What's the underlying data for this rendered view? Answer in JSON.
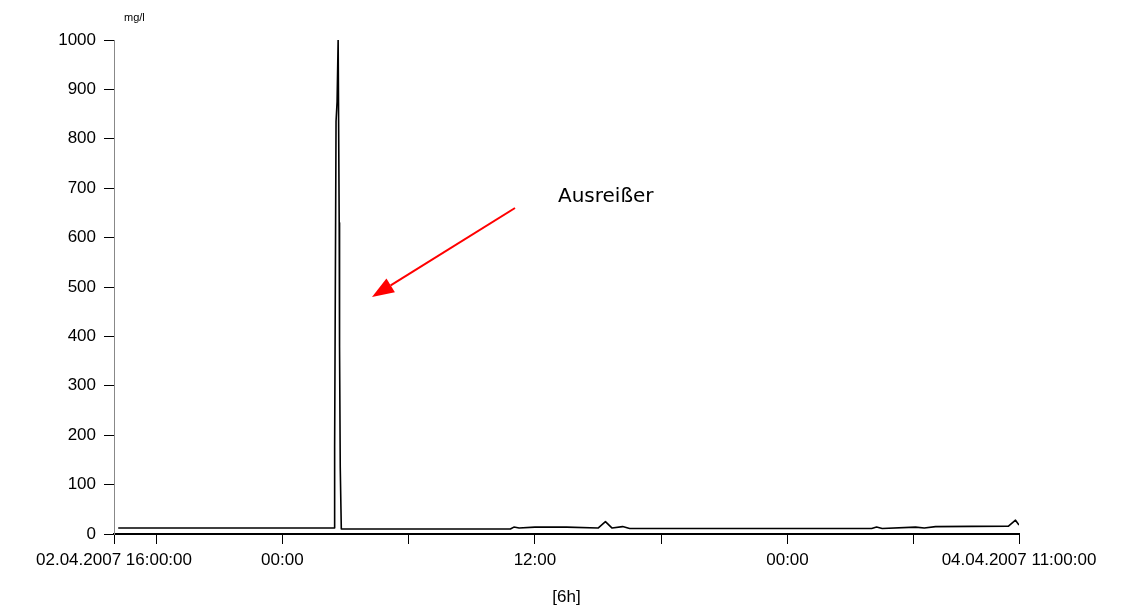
{
  "chart_data": {
    "type": "line",
    "xlabel": "[6h]",
    "ylabel": "mg/l",
    "xlim": [
      "2007-04-02T16:00",
      "2007-04-04T11:00"
    ],
    "ylim": [
      0,
      1000
    ],
    "yticks": [
      0,
      100,
      200,
      300,
      400,
      500,
      600,
      700,
      800,
      900,
      1000
    ],
    "xticks": [
      {
        "value": "2007-04-02T16:00",
        "label": "02.04.2007 16:00:00"
      },
      {
        "value": "2007-04-02T18:00",
        "label": null
      },
      {
        "value": "2007-04-03T00:00",
        "label": "00:00"
      },
      {
        "value": "2007-04-03T06:00",
        "label": null
      },
      {
        "value": "2007-04-03T12:00",
        "label": "12:00"
      },
      {
        "value": "2007-04-03T18:00",
        "label": null
      },
      {
        "value": "2007-04-04T00:00",
        "label": "00:00"
      },
      {
        "value": "2007-04-04T06:00",
        "label": null
      },
      {
        "value": "2007-04-04T11:00",
        "label": "04.04.2007 11:00:00"
      }
    ],
    "grid": false,
    "legend": false,
    "x": [
      "2007-04-02T16:12",
      "2007-04-03T02:28",
      "2007-04-03T02:29",
      "2007-04-03T02:33",
      "2007-04-03T02:36",
      "2007-04-03T02:39",
      "2007-04-03T02:42",
      "2007-04-03T02:43",
      "2007-04-03T02:45",
      "2007-04-03T02:48",
      "2007-04-03T10:50",
      "2007-04-03T11:00",
      "2007-04-03T11:15",
      "2007-04-03T12:00",
      "2007-04-03T13:30",
      "2007-04-03T15:00",
      "2007-04-03T15:21",
      "2007-04-03T15:40",
      "2007-04-03T16:10",
      "2007-04-03T16:30",
      "2007-04-04T04:00",
      "2007-04-04T04:14",
      "2007-04-04T04:30",
      "2007-04-04T06:05",
      "2007-04-04T06:30",
      "2007-04-04T07:02",
      "2007-04-04T10:30",
      "2007-04-04T10:50",
      "2007-04-04T11:00"
    ],
    "series": [
      {
        "color": "#000000",
        "values": [
          12,
          12,
          175,
          835,
          875,
          1000,
          630,
          380,
          135,
          10,
          10,
          14,
          12,
          14,
          14,
          12,
          25,
          12,
          15,
          11,
          11,
          14,
          11,
          14,
          12,
          15,
          16,
          28,
          18
        ]
      }
    ],
    "annotations": [
      "Ausreißer"
    ]
  }
}
